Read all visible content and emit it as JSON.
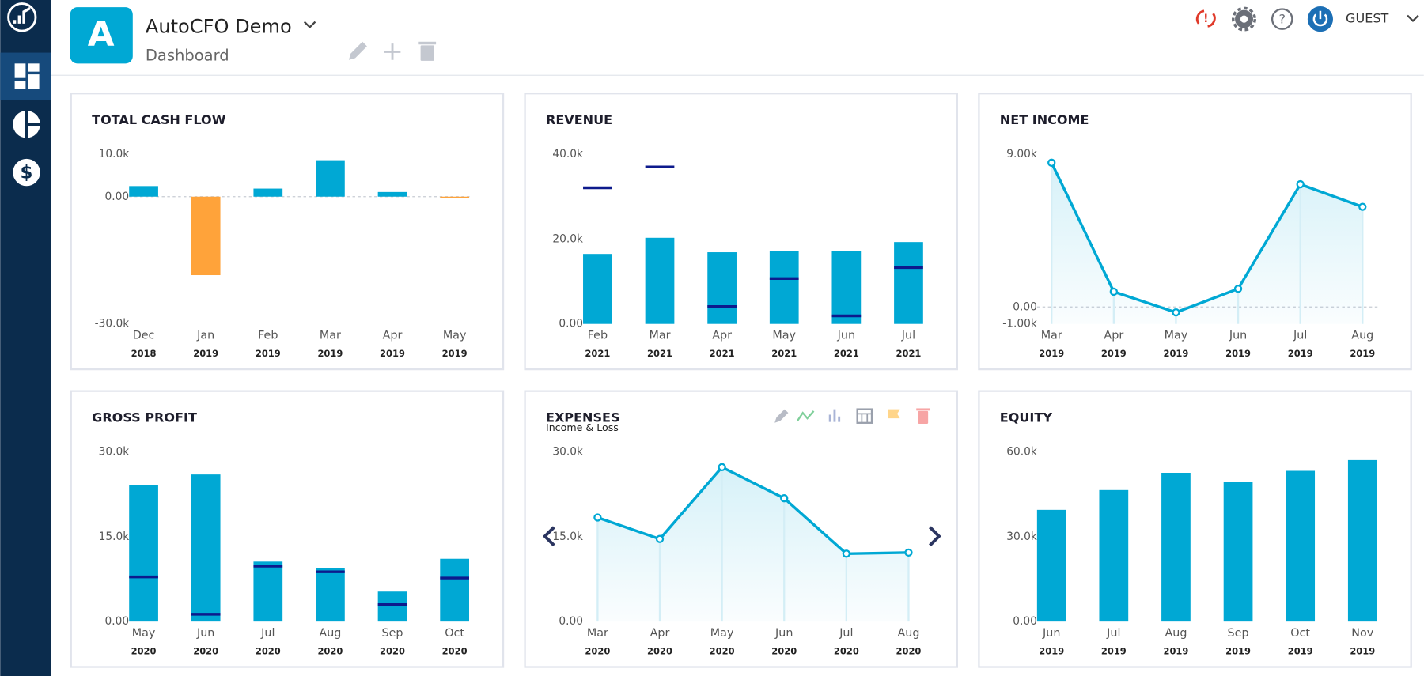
{
  "header": {
    "app_initial": "A",
    "app_name": "AutoCFO Demo",
    "page": "Dashboard",
    "user": "GUEST"
  },
  "chart_data": [
    {
      "type": "bar",
      "title": "TOTAL CASH FLOW",
      "categories": [
        "Dec",
        "Jan",
        "Feb",
        "Mar",
        "Apr",
        "May"
      ],
      "years": [
        "2018",
        "2019",
        "2019",
        "2019",
        "2019",
        "2019"
      ],
      "ylim": [
        -30000,
        10000
      ],
      "yticks": [
        {
          "value": -30000,
          "label": "-30.0k"
        },
        {
          "value": 0,
          "label": "0.00"
        },
        {
          "value": 10000,
          "label": "10.0k"
        }
      ],
      "zero_line": true,
      "series": [
        {
          "color": "#00a8d4",
          "negative_color": "#ffa33a",
          "values": [
            2500,
            -18500,
            1900,
            8600,
            1100,
            -300
          ]
        }
      ]
    },
    {
      "type": "bar",
      "title": "REVENUE",
      "categories": [
        "Feb",
        "Mar",
        "Apr",
        "May",
        "Jun",
        "Jul"
      ],
      "years": [
        "2021",
        "2021",
        "2021",
        "2021",
        "2021",
        "2021"
      ],
      "ylim": [
        0,
        40000
      ],
      "yticks": [
        {
          "value": 0,
          "label": "0.00"
        },
        {
          "value": 20000,
          "label": "20.0k"
        },
        {
          "value": 40000,
          "label": "40.0k"
        }
      ],
      "zero_line": false,
      "series": [
        {
          "color": "#00a8d4",
          "values": [
            16500,
            20300,
            16900,
            17100,
            17100,
            19300
          ]
        },
        {
          "color": "#0d1a8c",
          "style": "marker",
          "values": [
            32100,
            37000,
            4100,
            10700,
            1900,
            13300
          ]
        }
      ]
    },
    {
      "type": "line",
      "title": "NET INCOME",
      "categories": [
        "Mar",
        "Apr",
        "May",
        "Jun",
        "Jul",
        "Aug"
      ],
      "years": [
        "2019",
        "2019",
        "2019",
        "2019",
        "2019",
        "2019"
      ],
      "ylim": [
        -1000,
        9000
      ],
      "yticks": [
        {
          "value": -1000,
          "label": "-1.00k"
        },
        {
          "value": 0,
          "label": "0.00"
        },
        {
          "value": 9000,
          "label": "9.00k"
        }
      ],
      "zero_line": true,
      "series": [
        {
          "color": "#00a8d4",
          "values": [
            8500,
            900,
            -320,
            1070,
            7230,
            5900
          ]
        }
      ]
    },
    {
      "type": "bar",
      "title": "GROSS PROFIT",
      "categories": [
        "May",
        "Jun",
        "Jul",
        "Aug",
        "Sep",
        "Oct"
      ],
      "years": [
        "2020",
        "2020",
        "2020",
        "2020",
        "2020",
        "2020"
      ],
      "ylim": [
        0,
        30000
      ],
      "yticks": [
        {
          "value": 0,
          "label": "0.00"
        },
        {
          "value": 15000,
          "label": "15.0k"
        },
        {
          "value": 30000,
          "label": "30.0k"
        }
      ],
      "zero_line": false,
      "series": [
        {
          "color": "#00a8d4",
          "values": [
            24200,
            26000,
            10600,
            9500,
            5300,
            11100
          ]
        },
        {
          "color": "#0d1a8c",
          "style": "marker",
          "values": [
            7900,
            1300,
            9800,
            8800,
            3000,
            7700
          ]
        }
      ]
    },
    {
      "type": "line",
      "title": "EXPENSES",
      "subtitle": "Income & Loss",
      "categories": [
        "Mar",
        "Apr",
        "May",
        "Jun",
        "Jul",
        "Aug"
      ],
      "years": [
        "2020",
        "2020",
        "2020",
        "2020",
        "2020",
        "2020"
      ],
      "ylim": [
        0,
        30000
      ],
      "yticks": [
        {
          "value": 0,
          "label": "0.00"
        },
        {
          "value": 15000,
          "label": "15.0k"
        },
        {
          "value": 30000,
          "label": "30.0k"
        }
      ],
      "zero_line": false,
      "series": [
        {
          "color": "#00a8d4",
          "values": [
            18400,
            14600,
            27300,
            21800,
            12000,
            12200
          ]
        }
      ]
    },
    {
      "type": "bar",
      "title": "EQUITY",
      "categories": [
        "Jun",
        "Jul",
        "Aug",
        "Sep",
        "Oct",
        "Nov"
      ],
      "years": [
        "2019",
        "2019",
        "2019",
        "2019",
        "2019",
        "2019"
      ],
      "ylim": [
        0,
        60000
      ],
      "yticks": [
        {
          "value": 0,
          "label": "0.00"
        },
        {
          "value": 30000,
          "label": "30.0k"
        },
        {
          "value": 60000,
          "label": "60.0k"
        }
      ],
      "zero_line": false,
      "series": [
        {
          "color": "#00a8d4",
          "values": [
            39500,
            46500,
            52600,
            49400,
            53300,
            57100
          ]
        }
      ]
    }
  ]
}
